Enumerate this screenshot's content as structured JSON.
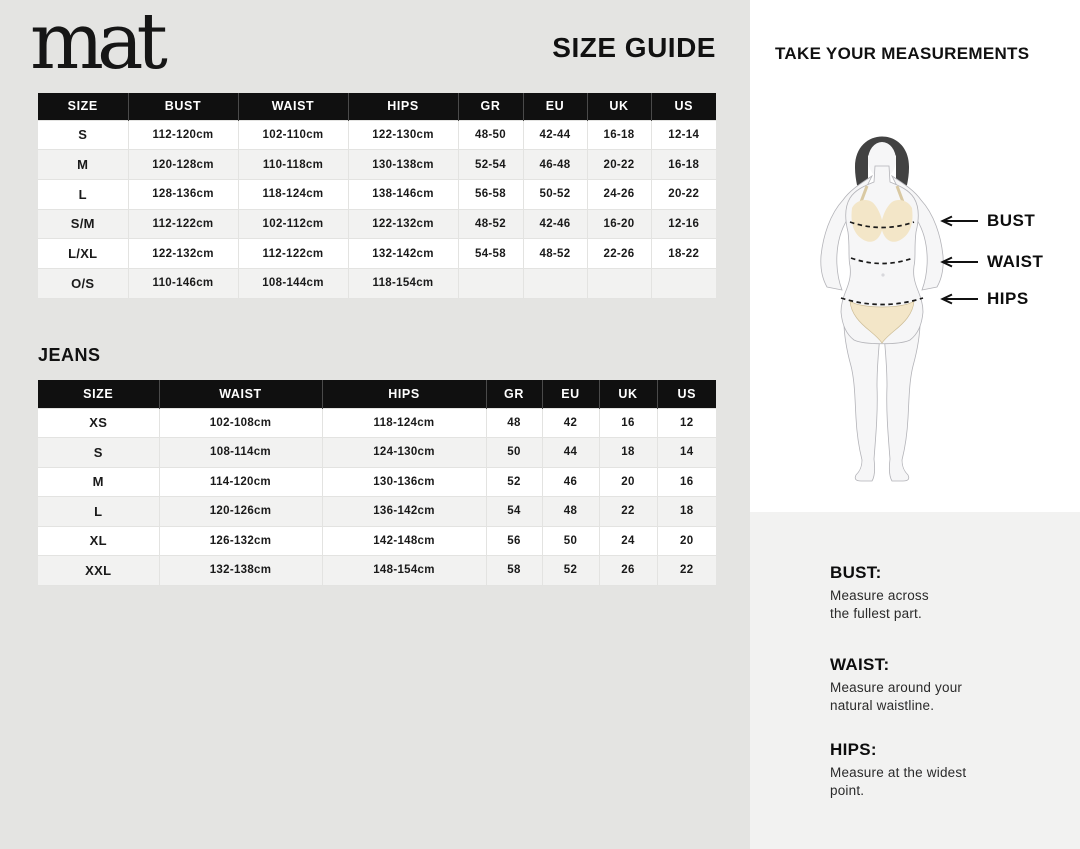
{
  "brand": {
    "logo_text": "mat"
  },
  "page": {
    "title": "SIZE GUIDE"
  },
  "main_table": {
    "headers": [
      "SIZE",
      "BUST",
      "WAIST",
      "HIPS",
      "GR",
      "EU",
      "UK",
      "US"
    ],
    "rows": [
      [
        "S",
        "112-120cm",
        "102-110cm",
        "122-130cm",
        "48-50",
        "42-44",
        "16-18",
        "12-14"
      ],
      [
        "M",
        "120-128cm",
        "110-118cm",
        "130-138cm",
        "52-54",
        "46-48",
        "20-22",
        "16-18"
      ],
      [
        "L",
        "128-136cm",
        "118-124cm",
        "138-146cm",
        "56-58",
        "50-52",
        "24-26",
        "20-22"
      ],
      [
        "S/M",
        "112-122cm",
        "102-112cm",
        "122-132cm",
        "48-52",
        "42-46",
        "16-20",
        "12-16"
      ],
      [
        "L/XL",
        "122-132cm",
        "112-122cm",
        "132-142cm",
        "54-58",
        "48-52",
        "22-26",
        "18-22"
      ],
      [
        "O/S",
        "110-146cm",
        "108-144cm",
        "118-154cm",
        "",
        "",
        "",
        ""
      ]
    ]
  },
  "jeans_section": {
    "heading": "JEANS",
    "table": {
      "headers": [
        "SIZE",
        "WAIST",
        "HIPS",
        "GR",
        "EU",
        "UK",
        "US"
      ],
      "rows": [
        [
          "XS",
          "102-108cm",
          "118-124cm",
          "48",
          "42",
          "16",
          "12"
        ],
        [
          "S",
          "108-114cm",
          "124-130cm",
          "50",
          "44",
          "18",
          "14"
        ],
        [
          "M",
          "114-120cm",
          "130-136cm",
          "52",
          "46",
          "20",
          "16"
        ],
        [
          "L",
          "120-126cm",
          "136-142cm",
          "54",
          "48",
          "22",
          "18"
        ],
        [
          "XL",
          "126-132cm",
          "142-148cm",
          "56",
          "50",
          "24",
          "20"
        ],
        [
          "XXL",
          "132-138cm",
          "148-154cm",
          "58",
          "52",
          "26",
          "22"
        ]
      ]
    }
  },
  "measurements_panel": {
    "title": "TAKE YOUR MEASUREMENTS",
    "figure_labels": {
      "bust": "BUST",
      "waist": "WAIST",
      "hips": "HIPS"
    },
    "tips": [
      {
        "label": "BUST:",
        "text": "Measure across\nthe fullest part."
      },
      {
        "label": "WAIST:",
        "text": "Measure around your\nnatural waistline."
      },
      {
        "label": "HIPS:",
        "text": "Measure at the widest\npoint."
      }
    ]
  },
  "icons": {
    "measure_arrow": "left-arrow"
  },
  "colors": {
    "left_panel_bg": "#e4e4e2",
    "right_top_bg": "#ffffff",
    "right_bottom_bg": "#f2f2f1",
    "table_header_bg": "#101010",
    "table_header_text": "#ffffff",
    "table_row_alt": "#f2f2f1",
    "figure_hair": "#424242",
    "figure_skin": "#f6f6f7",
    "figure_underwear": "#f3e6c8",
    "text_primary": "#111111"
  }
}
